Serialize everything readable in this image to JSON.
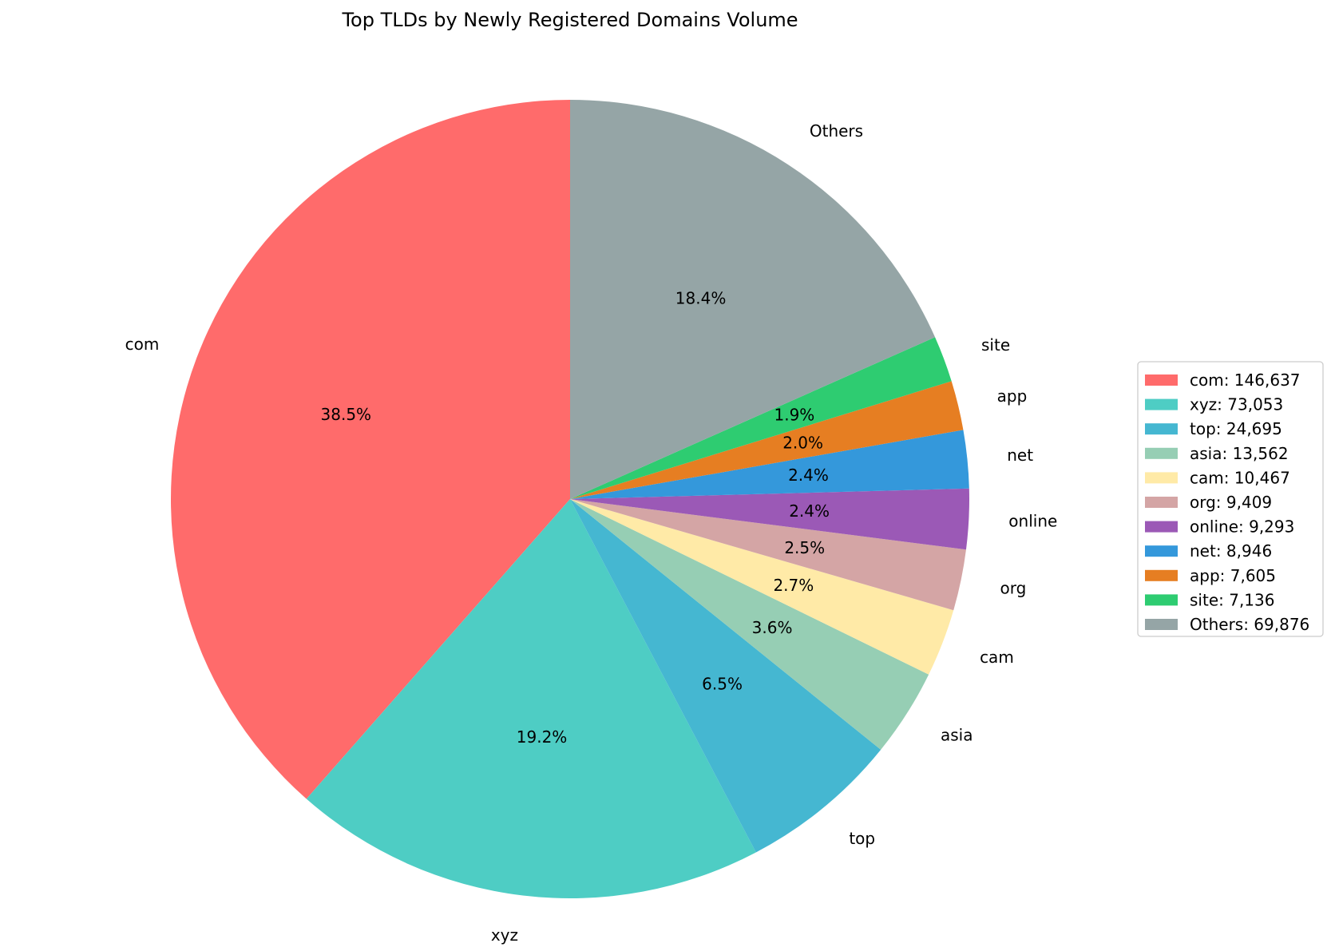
{
  "chart_data": {
    "type": "pie",
    "title": "Top TLDs by Newly Registered Domains Volume",
    "slices": [
      {
        "label": "com",
        "value": 146637,
        "percent_label": "38.5%",
        "legend_label": "com: 146,637",
        "color": "#ff6b6b"
      },
      {
        "label": "xyz",
        "value": 73053,
        "percent_label": "19.2%",
        "legend_label": "xyz: 73,053",
        "color": "#4ecdc4"
      },
      {
        "label": "top",
        "value": 24695,
        "percent_label": "6.5%",
        "legend_label": "top: 24,695",
        "color": "#45b7d1"
      },
      {
        "label": "asia",
        "value": 13562,
        "percent_label": "3.6%",
        "legend_label": "asia: 13,562",
        "color": "#96ceb4"
      },
      {
        "label": "cam",
        "value": 10467,
        "percent_label": "2.7%",
        "legend_label": "cam: 10,467",
        "color": "#ffeaa7"
      },
      {
        "label": "org",
        "value": 9409,
        "percent_label": "2.5%",
        "legend_label": "org: 9,409",
        "color": "#d4a5a5"
      },
      {
        "label": "online",
        "value": 9293,
        "percent_label": "2.4%",
        "legend_label": "online: 9,293",
        "color": "#9b59b6"
      },
      {
        "label": "net",
        "value": 8946,
        "percent_label": "2.4%",
        "legend_label": "net: 8,946",
        "color": "#3498db"
      },
      {
        "label": "app",
        "value": 7605,
        "percent_label": "2.0%",
        "legend_label": "app: 7,605",
        "color": "#e67e22"
      },
      {
        "label": "site",
        "value": 7136,
        "percent_label": "1.9%",
        "legend_label": "site: 7,136",
        "color": "#2ecc71"
      },
      {
        "label": "Others",
        "value": 69876,
        "percent_label": "18.4%",
        "legend_label": "Others: 69,876",
        "color": "#95a5a6"
      }
    ],
    "start_angle_deg": 90,
    "direction": "counterclockwise",
    "legend_position": "center-right"
  }
}
